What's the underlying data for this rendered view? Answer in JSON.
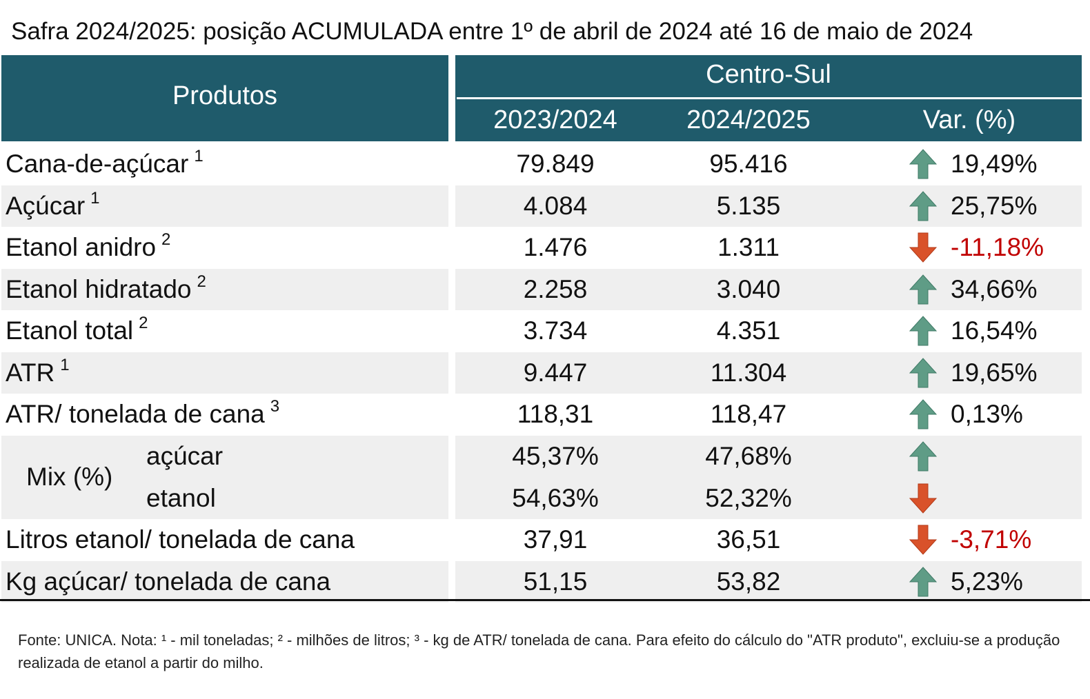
{
  "title": "Safra 2024/2025: posição ACUMULADA entre 1º de abril de 2024 até 16 de maio de 2024",
  "table": {
    "header": {
      "products": "Produtos",
      "region": "Centro-Sul",
      "columns": [
        "2023/2024",
        "2024/2025",
        "Var. (%)"
      ]
    },
    "rows": [
      {
        "label": "Cana-de-açúcar",
        "note": "1",
        "values": [
          "79.849",
          "95.416"
        ],
        "var": "19,49%",
        "trend": "up"
      },
      {
        "label": "Açúcar",
        "note": "1",
        "values": [
          "4.084",
          "5.135"
        ],
        "var": "25,75%",
        "trend": "up"
      },
      {
        "label": "Etanol anidro",
        "note": "2",
        "values": [
          "1.476",
          "1.311"
        ],
        "var": "-11,18%",
        "trend": "down"
      },
      {
        "label": "Etanol hidratado",
        "note": "2",
        "values": [
          "2.258",
          "3.040"
        ],
        "var": "34,66%",
        "trend": "up"
      },
      {
        "label": "Etanol total",
        "note": "2",
        "values": [
          "3.734",
          "4.351"
        ],
        "var": "16,54%",
        "trend": "up"
      },
      {
        "label": "ATR",
        "note": "1",
        "values": [
          "9.447",
          "11.304"
        ],
        "var": "19,65%",
        "trend": "up"
      },
      {
        "label": "ATR/ tonelada de cana",
        "note": "3",
        "values": [
          "118,31",
          "118,47"
        ],
        "var": "0,13%",
        "trend": "up"
      },
      {
        "label": "Mix (%)",
        "parts": [
          {
            "label": "açúcar",
            "values": [
              "45,37%",
              "47,68%"
            ],
            "trend": "up"
          },
          {
            "label": "etanol",
            "values": [
              "54,63%",
              "52,32%"
            ],
            "trend": "down"
          }
        ]
      },
      {
        "label": "Litros etanol/ tonelada de cana",
        "values": [
          "37,91",
          "36,51"
        ],
        "var": "-3,71%",
        "trend": "down"
      },
      {
        "label": "Kg açúcar/ tonelada de cana",
        "values": [
          "51,15",
          "53,82"
        ],
        "var": "5,23%",
        "trend": "up"
      }
    ]
  },
  "footnote": "Fonte: UNICA. Nota: ¹ - mil toneladas; ² - milhões de litros; ³ - kg de ATR/ tonelada de cana. Para efeito do cálculo do \"ATR produto\", excluiu-se a produção realizada de etanol a partir do milho."
}
